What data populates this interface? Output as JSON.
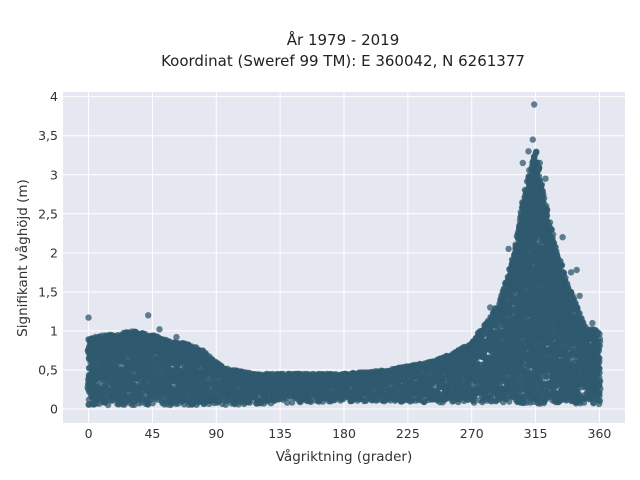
{
  "chart_data": {
    "type": "scatter",
    "title_line1": "År 1979 - 2019",
    "title_line2": "Koordinat (Sweref 99 TM): E 360042, N 6261377",
    "xlabel": "Vågriktning (grader)",
    "ylabel": "Signifikant våghöjd (m)",
    "xlim": [
      -18,
      378
    ],
    "ylim": [
      -0.18,
      4.06
    ],
    "xticks": [
      0,
      45,
      90,
      135,
      180,
      225,
      270,
      315,
      360
    ],
    "yticks": [
      0,
      0.5,
      1,
      1.5,
      2,
      2.5,
      3,
      3.5,
      4
    ],
    "ytick_labels": [
      "0",
      "0,5",
      "1",
      "1,5",
      "2",
      "2,5",
      "3",
      "3,5",
      "4"
    ],
    "grid": true,
    "marker_color": "#2f5a6f",
    "plot_background": "#e5e8f0",
    "envelope_upper": {
      "x": [
        0,
        10,
        20,
        30,
        45,
        60,
        70,
        80,
        90,
        100,
        120,
        150,
        180,
        210,
        240,
        255,
        270,
        280,
        290,
        300,
        305,
        310,
        315,
        320,
        330,
        340,
        350,
        360
      ],
      "y": [
        0.9,
        0.95,
        0.95,
        1.0,
        0.95,
        0.85,
        0.85,
        0.75,
        0.6,
        0.5,
        0.45,
        0.45,
        0.45,
        0.5,
        0.6,
        0.7,
        0.85,
        1.1,
        1.4,
        2.0,
        2.6,
        3.0,
        3.3,
        2.8,
        2.0,
        1.5,
        1.05,
        1.0
      ]
    },
    "envelope_lower": {
      "x": [
        0,
        90,
        180,
        270,
        360
      ],
      "y": [
        0.05,
        0.05,
        0.1,
        0.08,
        0.05
      ]
    },
    "outliers": [
      {
        "x": 0,
        "y": 1.17
      },
      {
        "x": 42,
        "y": 1.2
      },
      {
        "x": 50,
        "y": 1.02
      },
      {
        "x": 62,
        "y": 0.92
      },
      {
        "x": 283,
        "y": 1.3
      },
      {
        "x": 296,
        "y": 2.05
      },
      {
        "x": 306,
        "y": 3.15
      },
      {
        "x": 310,
        "y": 3.3
      },
      {
        "x": 313,
        "y": 3.45
      },
      {
        "x": 314,
        "y": 3.9
      },
      {
        "x": 318,
        "y": 3.15
      },
      {
        "x": 322,
        "y": 2.95
      },
      {
        "x": 334,
        "y": 2.2
      },
      {
        "x": 340,
        "y": 1.75
      },
      {
        "x": 344,
        "y": 1.78
      },
      {
        "x": 346,
        "y": 1.45
      },
      {
        "x": 355,
        "y": 1.1
      }
    ]
  }
}
